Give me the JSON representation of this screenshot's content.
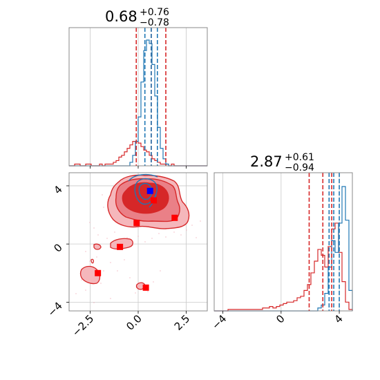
{
  "chart_data": {
    "type": "corner",
    "parameters": [
      {
        "median": 0.68,
        "plus": 0.76,
        "minus": 0.78,
        "title_main": "0.68",
        "title_sup": "+0.76",
        "title_sub": "−0.78"
      },
      {
        "median": 2.87,
        "plus": 0.61,
        "minus": 0.94,
        "title_main": "2.87",
        "title_sup": "+0.61",
        "title_sub": "−0.94"
      }
    ],
    "x_axis": {
      "range": [
        -3.6,
        3.6
      ],
      "ticks": [
        -2.5,
        0.0,
        2.5
      ],
      "tick_labels": [
        "−2.5",
        "0.0",
        "2.5"
      ]
    },
    "y_axis": {
      "range": [
        -4.6,
        4.9
      ],
      "ticks": [
        -4,
        0,
        4
      ],
      "tick_labels": [
        "−4",
        "0",
        "4"
      ]
    },
    "y_hist_axis": {
      "range": [
        -4.6,
        4.9
      ],
      "ticks": [
        -4,
        0,
        4
      ],
      "tick_labels": [
        "−4",
        "0",
        "4"
      ]
    },
    "grid": true,
    "colors": {
      "red": "#d62728",
      "blue": "#1f77b4",
      "red_fill": "#f0a0a0",
      "red_dark": "#d62728",
      "marker_blue": "#0000ff",
      "marker_red": "#ff0000",
      "grid": "#c8c8c8",
      "frame": "#888888"
    },
    "hist1_red_counts": [
      0,
      0,
      1,
      1,
      0,
      0,
      1,
      1,
      0,
      0,
      0,
      1,
      0,
      1,
      1,
      1,
      2,
      3,
      5,
      6,
      8,
      10,
      12,
      14,
      14,
      13,
      11,
      9,
      8,
      6,
      4,
      3,
      2,
      1,
      1,
      1,
      0,
      1,
      0,
      0,
      0,
      0,
      0,
      0,
      0,
      0,
      0,
      0,
      0,
      0
    ],
    "hist1_blue_counts": [
      0,
      0,
      0,
      0,
      0,
      0,
      0,
      0,
      0,
      0,
      0,
      0,
      0,
      0,
      0,
      0,
      0,
      0,
      0,
      0,
      0,
      0,
      2,
      6,
      14,
      28,
      48,
      66,
      72,
      70,
      58,
      40,
      22,
      10,
      4,
      1,
      0,
      0,
      0,
      0,
      0,
      0,
      0,
      0,
      0,
      0,
      0,
      0,
      0,
      0
    ],
    "hist1_red_lines": [
      -0.1,
      1.44
    ],
    "hist1_red_median": 0.68,
    "hist1_blue_lines": [
      0.35,
      0.68,
      1.0
    ],
    "hist2_red_counts": [
      0,
      0,
      0,
      0,
      1,
      1,
      1,
      1,
      1,
      1,
      1,
      1,
      1,
      1,
      2,
      2,
      3,
      2,
      3,
      4,
      5,
      6,
      6,
      7,
      9,
      10,
      14,
      18,
      26,
      34,
      42,
      38,
      30,
      44,
      56,
      60,
      40,
      20,
      6,
      1
    ],
    "hist2_blue_counts": [
      0,
      0,
      0,
      0,
      0,
      0,
      0,
      0,
      0,
      0,
      0,
      0,
      0,
      0,
      0,
      0,
      0,
      0,
      0,
      0,
      0,
      0,
      0,
      0,
      0,
      0,
      0,
      0,
      0,
      0,
      2,
      4,
      12,
      30,
      48,
      40,
      60,
      85,
      62,
      14
    ],
    "hist2_red_lines": [
      1.93,
      3.48
    ],
    "hist2_red_median": 2.87,
    "hist2_blue_lines": [
      3.3,
      3.62,
      4.0
    ],
    "markers_red": [
      [
        0.81,
        3.0
      ],
      [
        -0.08,
        1.45
      ],
      [
        1.9,
        1.8
      ],
      [
        -0.95,
        -0.2
      ],
      [
        -2.1,
        -2.0
      ],
      [
        0.4,
        -3.0
      ]
    ],
    "markers_blue": [
      [
        0.62,
        3.65
      ]
    ]
  }
}
